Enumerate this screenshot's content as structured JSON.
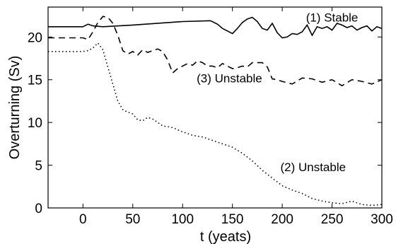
{
  "chart_data": {
    "type": "line",
    "xlabel": "t (yeats)",
    "ylabel": "Overturning (Sv)",
    "xlim": [
      -35,
      300
    ],
    "ylim": [
      0,
      23.5
    ],
    "xticks": [
      0,
      50,
      100,
      150,
      200,
      250,
      300
    ],
    "yticks": [
      0,
      5,
      10,
      15,
      20
    ],
    "series": [
      {
        "name": "(1) Stable",
        "style": "solid",
        "x": [
          -35,
          0,
          5,
          10,
          20,
          50,
          100,
          128,
          135,
          140,
          145,
          150,
          155,
          160,
          165,
          170,
          175,
          180,
          185,
          190,
          195,
          200,
          205,
          210,
          215,
          220,
          225,
          230,
          235,
          240,
          245,
          250,
          255,
          260,
          265,
          270,
          275,
          280,
          285,
          290,
          295,
          300
        ],
        "y": [
          21.2,
          21.2,
          21.5,
          21.3,
          21.2,
          21.4,
          21.8,
          21.9,
          21.5,
          21.0,
          20.7,
          20.4,
          21.0,
          21.7,
          22.1,
          22.3,
          21.8,
          21.0,
          20.8,
          21.6,
          20.5,
          19.9,
          20.0,
          20.4,
          20.3,
          20.6,
          21.4,
          20.2,
          21.2,
          21.0,
          21.2,
          20.8,
          21.6,
          21.4,
          21.1,
          21.3,
          20.8,
          21.1,
          21.3,
          20.7,
          21.2,
          21.0
        ]
      },
      {
        "name": "(3) Unstable",
        "style": "dashed",
        "x": [
          -35,
          0,
          5,
          10,
          15,
          20,
          25,
          30,
          35,
          40,
          45,
          50,
          55,
          60,
          65,
          70,
          75,
          80,
          85,
          90,
          95,
          100,
          105,
          110,
          115,
          120,
          125,
          130,
          135,
          140,
          145,
          150,
          155,
          160,
          165,
          170,
          175,
          180,
          185,
          190,
          195,
          200,
          210,
          220,
          230,
          240,
          250,
          260,
          270,
          280,
          290,
          300
        ],
        "y": [
          19.9,
          19.9,
          19.7,
          20.6,
          21.7,
          22.4,
          22.3,
          21.6,
          20.2,
          18.4,
          18.0,
          18.3,
          17.9,
          18.5,
          18.2,
          18.4,
          18.6,
          18.3,
          17.3,
          15.8,
          16.3,
          16.6,
          16.9,
          16.7,
          17.2,
          17.0,
          16.6,
          16.6,
          16.4,
          16.9,
          16.6,
          16.3,
          16.4,
          16.6,
          16.5,
          17.0,
          17.0,
          17.0,
          16.5,
          15.1,
          15.0,
          14.8,
          14.5,
          15.2,
          15.1,
          14.7,
          15.0,
          14.3,
          15.0,
          14.8,
          14.5,
          15.0
        ]
      },
      {
        "name": "(2) Unstable",
        "style": "dotted",
        "x": [
          -35,
          0,
          5,
          10,
          15,
          20,
          25,
          30,
          35,
          40,
          45,
          50,
          55,
          60,
          65,
          70,
          75,
          80,
          90,
          100,
          110,
          120,
          130,
          140,
          150,
          160,
          170,
          180,
          190,
          200,
          210,
          220,
          230,
          240,
          250,
          260,
          270,
          280,
          290,
          300
        ],
        "y": [
          18.3,
          18.3,
          18.4,
          18.7,
          19.3,
          18.5,
          16.5,
          14.5,
          12.5,
          11.5,
          11.2,
          11.0,
          10.3,
          10.2,
          10.6,
          10.4,
          10.0,
          9.6,
          9.4,
          8.9,
          8.5,
          8.3,
          7.9,
          7.5,
          7.1,
          6.4,
          5.5,
          4.4,
          3.5,
          2.6,
          2.1,
          1.7,
          1.1,
          0.8,
          0.6,
          0.5,
          0.8,
          0.4,
          0.3,
          0.4
        ]
      }
    ],
    "annotations": [
      {
        "text": "(1) Stable",
        "x": 250,
        "y": 21.8
      },
      {
        "text": "(3) Unstable",
        "x": 147,
        "y": 14.7
      },
      {
        "text": "(2) Unstable",
        "x": 231,
        "y": 4.3
      }
    ],
    "grid": false,
    "legend": "none"
  }
}
